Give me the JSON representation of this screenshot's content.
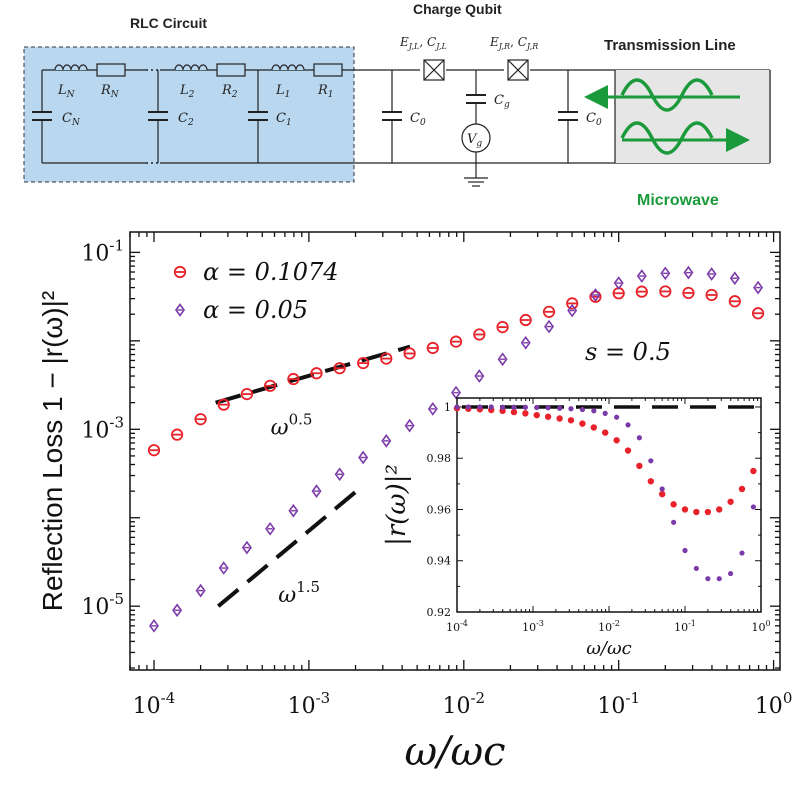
{
  "circuit": {
    "rlc_title": "RLC Circuit",
    "qubit_title": "Charge Qubit",
    "tline_title": "Transmission Line",
    "microwave_label": "Microwave",
    "labels": {
      "LN": "L",
      "LN_sub": "N",
      "RN": "R",
      "RN_sub": "N",
      "CN": "C",
      "CN_sub": "N",
      "L2": "L",
      "L2_sub": "2",
      "R2": "R",
      "R2_sub": "2",
      "C2": "C",
      "C2_sub": "2",
      "L1": "L",
      "L1_sub": "1",
      "R1": "R",
      "R1_sub": "1",
      "C1": "C",
      "C1_sub": "1",
      "C0_left": "C",
      "C0_left_sub": "0",
      "C0_right": "C",
      "C0_right_sub": "0",
      "Cg": "C",
      "Cg_sub": "g",
      "Vg": "V",
      "Vg_sub": "g",
      "EJL": "E",
      "EJL_sub": "J,L",
      "CJL": "C",
      "CJL_sub": "J,L",
      "EJR": "E",
      "EJR_sub": "J,R",
      "CJR": "C",
      "CJR_sub": "J,R",
      "comma": ", "
    },
    "colors": {
      "rlc_box": "#b9d7ef",
      "tline_box": "#e6e6e6",
      "microwave": "#1a9a3a"
    }
  },
  "chart_data": [
    {
      "type": "scatter",
      "xscale": "log",
      "yscale": "log",
      "xlim": [
        7e-05,
        1.1
      ],
      "ylim": [
        1.9e-06,
        0.17
      ],
      "xlabel": "ω/ωc",
      "ylabel": "Reflection Loss  1 − |r(ω)|²",
      "xticks": [
        {
          "base": "10",
          "exp": "-4",
          "v": 0.0001
        },
        {
          "base": "10",
          "exp": "-3",
          "v": 0.001
        },
        {
          "base": "10",
          "exp": "-2",
          "v": 0.01
        },
        {
          "base": "10",
          "exp": "-1",
          "v": 0.1
        },
        {
          "base": "10",
          "exp": "0",
          "v": 1
        }
      ],
      "yticks": [
        {
          "base": "10",
          "exp": "-1",
          "v": 0.1
        },
        {
          "base": "10",
          "exp": "-3",
          "v": 0.001
        },
        {
          "base": "10",
          "exp": "-5",
          "v": 1e-05
        }
      ],
      "annotation": "s = 0.5",
      "guides": [
        {
          "label_base": "ω",
          "label_exp": "0.5",
          "x": [
            0.00025,
            0.0045
          ],
          "y": [
            0.002,
            0.0086
          ]
        },
        {
          "label_base": "ω",
          "label_exp": "1.5",
          "x": [
            0.00026,
            0.0021
          ],
          "y": [
            1e-05,
            0.00021
          ]
        }
      ],
      "series": [
        {
          "name": "α = 0.1074",
          "color": "#e8222a",
          "marker": "circle",
          "x": [
            0.0001,
            0.000141,
            0.0002,
            0.000282,
            0.000398,
            0.000562,
            0.000794,
            0.00112,
            0.00158,
            0.00224,
            0.00316,
            0.00447,
            0.00631,
            0.00891,
            0.0126,
            0.0178,
            0.0251,
            0.0355,
            0.0501,
            0.0708,
            0.1,
            0.141,
            0.2,
            0.282,
            0.398,
            0.562,
            0.794
          ],
          "y": [
            0.00058,
            0.00087,
            0.0013,
            0.0019,
            0.0025,
            0.0031,
            0.0037,
            0.0043,
            0.0049,
            0.0056,
            0.0063,
            0.0072,
            0.0083,
            0.0098,
            0.0118,
            0.0143,
            0.0172,
            0.0213,
            0.0265,
            0.0315,
            0.0345,
            0.036,
            0.0362,
            0.0348,
            0.033,
            0.028,
            0.0205
          ]
        },
        {
          "name": "α = 0.05",
          "color": "#7b3aa8",
          "marker": "diamond",
          "x": [
            0.0001,
            0.000141,
            0.0002,
            0.000282,
            0.000398,
            0.000562,
            0.000794,
            0.00112,
            0.00158,
            0.00224,
            0.00316,
            0.00447,
            0.00631,
            0.00891,
            0.0126,
            0.0178,
            0.0251,
            0.0355,
            0.0501,
            0.0708,
            0.1,
            0.141,
            0.2,
            0.282,
            0.398,
            0.562,
            0.794
          ],
          "y": [
            6e-06,
            9e-06,
            1.5e-05,
            2.7e-05,
            4.6e-05,
            7.5e-05,
            0.00012,
            0.0002,
            0.00031,
            0.00048,
            0.00074,
            0.0011,
            0.0017,
            0.0026,
            0.004,
            0.0062,
            0.0095,
            0.0145,
            0.022,
            0.033,
            0.045,
            0.054,
            0.058,
            0.059,
            0.057,
            0.051,
            0.04
          ]
        }
      ]
    },
    {
      "type": "scatter",
      "xscale": "log",
      "yscale": "linear",
      "xlim": [
        0.0001,
        1
      ],
      "ylim": [
        0.92,
        1.0035
      ],
      "xlabel": "ω/ωc",
      "ylabel": "|r(ω)|²",
      "xticks": [
        {
          "base": "10",
          "exp": "-4",
          "v": 0.0001
        },
        {
          "base": "10",
          "exp": "-3",
          "v": 0.001
        },
        {
          "base": "10",
          "exp": "-2",
          "v": 0.01
        },
        {
          "base": "10",
          "exp": "-1",
          "v": 0.1
        },
        {
          "base": "10",
          "exp": "0",
          "v": 1
        }
      ],
      "yticks": [
        {
          "label": "1",
          "v": 1.0
        },
        {
          "label": "0.98",
          "v": 0.98
        },
        {
          "label": "0.96",
          "v": 0.96
        },
        {
          "label": "0.94",
          "v": 0.94
        },
        {
          "label": "0.92",
          "v": 0.92
        }
      ],
      "reference_line": 1.0,
      "series": [
        {
          "name": "α = 0.1074",
          "color": "#e8222a",
          "marker": "dot",
          "x": [
            0.0001,
            0.000141,
            0.0002,
            0.000282,
            0.000398,
            0.000562,
            0.000794,
            0.00112,
            0.00158,
            0.00224,
            0.00316,
            0.00447,
            0.00631,
            0.00891,
            0.0126,
            0.0178,
            0.0251,
            0.0355,
            0.0501,
            0.0708,
            0.1,
            0.141,
            0.2,
            0.282,
            0.398,
            0.562,
            0.794
          ],
          "y": [
            0.9995,
            0.9993,
            0.9991,
            0.9988,
            0.9985,
            0.998,
            0.9975,
            0.9968,
            0.9962,
            0.9955,
            0.9948,
            0.9935,
            0.992,
            0.99,
            0.987,
            0.983,
            0.977,
            0.971,
            0.966,
            0.962,
            0.96,
            0.959,
            0.959,
            0.96,
            0.963,
            0.968,
            0.975
          ]
        },
        {
          "name": "α = 0.05",
          "color": "#7b3aa8",
          "marker": "dot",
          "x": [
            0.0001,
            0.000141,
            0.0002,
            0.000282,
            0.000398,
            0.000562,
            0.000794,
            0.00112,
            0.00158,
            0.00224,
            0.00316,
            0.00447,
            0.00631,
            0.00891,
            0.0126,
            0.0178,
            0.0251,
            0.0355,
            0.0501,
            0.0708,
            0.1,
            0.141,
            0.2,
            0.282,
            0.398,
            0.562,
            0.794
          ],
          "y": [
            1.0,
            1.0,
            1.0,
            1.0,
            0.9999,
            0.9999,
            0.9999,
            0.9998,
            0.9997,
            0.9995,
            0.9993,
            0.999,
            0.9985,
            0.9975,
            0.996,
            0.993,
            0.988,
            0.979,
            0.968,
            0.955,
            0.944,
            0.937,
            0.933,
            0.933,
            0.935,
            0.943,
            0.961
          ]
        }
      ]
    }
  ]
}
